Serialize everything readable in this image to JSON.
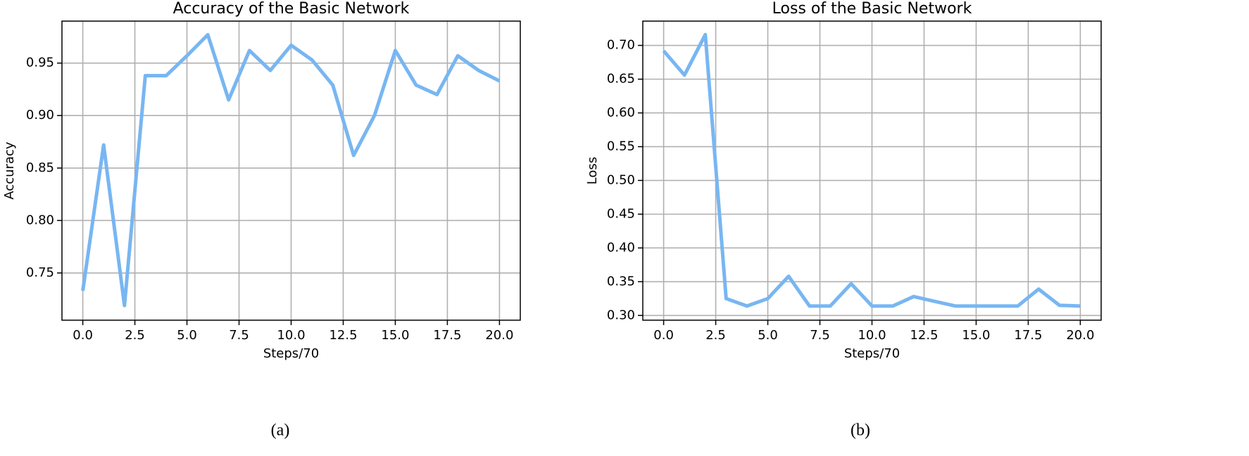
{
  "chart_data": [
    {
      "type": "line",
      "title": "Accuracy of the Basic Network",
      "xlabel": "Steps/70",
      "ylabel": "Accuracy",
      "caption": "(a)",
      "x": [
        0,
        1,
        2,
        3,
        4,
        5,
        6,
        7,
        8,
        9,
        10,
        11,
        12,
        13,
        14,
        15,
        16,
        17,
        18,
        19,
        20
      ],
      "series": [
        {
          "color": "#78b6f2",
          "values": [
            0.733,
            0.872,
            0.719,
            0.938,
            0.938,
            0.957,
            0.977,
            0.915,
            0.962,
            0.943,
            0.967,
            0.953,
            0.929,
            0.862,
            0.9,
            0.962,
            0.929,
            0.92,
            0.957,
            0.943,
            0.933
          ]
        }
      ],
      "xlim": [
        -1,
        21
      ],
      "ylim": [
        0.705,
        0.99
      ],
      "xticks": [
        {
          "value": 0,
          "label": "0.0"
        },
        {
          "value": 2.5,
          "label": "2.5"
        },
        {
          "value": 5,
          "label": "5.0"
        },
        {
          "value": 7.5,
          "label": "7.5"
        },
        {
          "value": 10,
          "label": "10.0"
        },
        {
          "value": 12.5,
          "label": "12.5"
        },
        {
          "value": 15,
          "label": "15.0"
        },
        {
          "value": 17.5,
          "label": "17.5"
        },
        {
          "value": 20,
          "label": "20.0"
        }
      ],
      "yticks": [
        0.75,
        {
          "value": 0.8,
          "label": "0.80"
        },
        0.85,
        {
          "value": 0.9,
          "label": "0.90"
        },
        0.95
      ],
      "grid": true
    },
    {
      "type": "line",
      "title": "Loss of the Basic Network",
      "xlabel": "Steps/70",
      "ylabel": "Loss",
      "caption": "(b)",
      "x": [
        0,
        1,
        2,
        3,
        4,
        5,
        6,
        7,
        8,
        9,
        10,
        11,
        12,
        13,
        14,
        15,
        16,
        17,
        18,
        19,
        20
      ],
      "series": [
        {
          "color": "#78b6f2",
          "values": [
            0.692,
            0.656,
            0.716,
            0.325,
            0.314,
            0.325,
            0.358,
            0.314,
            0.314,
            0.347,
            0.314,
            0.314,
            0.328,
            0.321,
            0.314,
            0.314,
            0.314,
            0.314,
            0.339,
            0.315,
            0.314
          ]
        }
      ],
      "xlim": [
        -1,
        21
      ],
      "ylim": [
        0.293,
        0.736
      ],
      "xticks": [
        {
          "value": 0,
          "label": "0.0"
        },
        {
          "value": 2.5,
          "label": "2.5"
        },
        {
          "value": 5,
          "label": "5.0"
        },
        {
          "value": 7.5,
          "label": "7.5"
        },
        {
          "value": 10,
          "label": "10.0"
        },
        {
          "value": 12.5,
          "label": "12.5"
        },
        {
          "value": 15,
          "label": "15.0"
        },
        {
          "value": 17.5,
          "label": "17.5"
        },
        {
          "value": 20,
          "label": "20.0"
        }
      ],
      "yticks": [
        {
          "value": 0.3,
          "label": "0.30"
        },
        0.35,
        {
          "value": 0.4,
          "label": "0.40"
        },
        0.45,
        {
          "value": 0.5,
          "label": "0.50"
        },
        0.55,
        {
          "value": 0.6,
          "label": "0.60"
        },
        0.65,
        {
          "value": 0.7,
          "label": "0.70"
        }
      ],
      "grid": true
    }
  ]
}
